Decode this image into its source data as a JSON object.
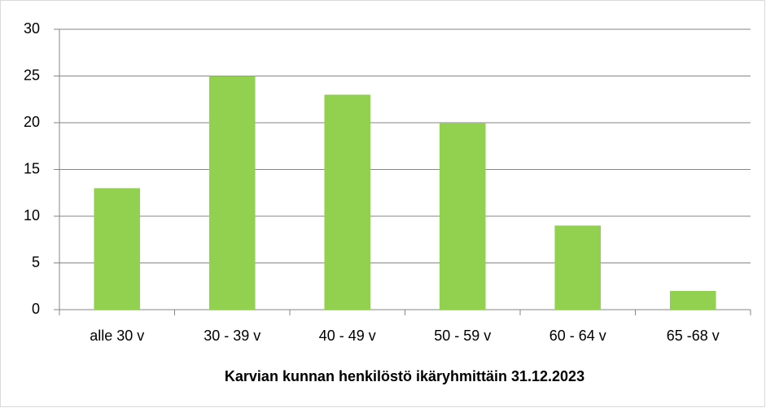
{
  "chart_data": {
    "type": "bar",
    "x_label": "Karvian kunnan henkilöstö ikäryhmittäin 31.12.2023",
    "categories": [
      "alle 30 v",
      "30 - 39 v",
      "40 - 49 v",
      "50 - 59 v",
      "60 - 64 v",
      "65 -68 v"
    ],
    "values": [
      13,
      25,
      23,
      20,
      9,
      2
    ],
    "color": "#92d050",
    "ylim": [
      0,
      30
    ],
    "yticks": [
      0,
      5,
      10,
      15,
      20,
      25,
      30
    ],
    "grid": true
  }
}
